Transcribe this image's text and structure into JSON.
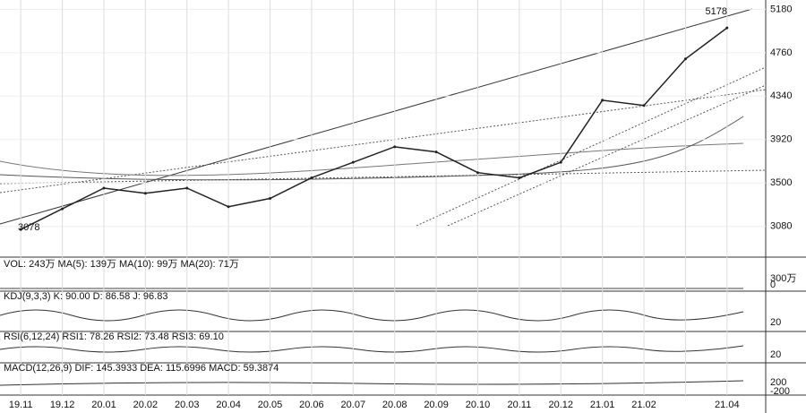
{
  "chart_data": {
    "type": "line",
    "categories": [
      "19.11",
      "19.12",
      "20.01",
      "20.02",
      "20.03",
      "20.04",
      "20.05",
      "20.06",
      "20.07",
      "20.08",
      "20.09",
      "20.10",
      "20.11",
      "20.12",
      "21.01",
      "21.02",
      null,
      "21.04"
    ],
    "values": [
      3050,
      3250,
      3450,
      3400,
      3450,
      3270,
      3350,
      3550,
      3700,
      3850,
      3800,
      3600,
      3550,
      3700,
      4300,
      4250,
      4700,
      5000
    ],
    "color": "#222222",
    "ylim": [
      2800,
      5270
    ],
    "yticks": [
      3080,
      3500,
      3920,
      4340,
      4760,
      5180
    ],
    "grid": true,
    "annotations": [
      "5178",
      "3078"
    ]
  },
  "panels": [
    {
      "title": "VOL: 243万 MA(5): 139万 MA(10): 99万 MA(20): 71万",
      "ticks": [
        "300万",
        "0"
      ]
    },
    {
      "title": "KDJ(9,3,3) K: 90.00 D: 86.58 J: 96.83",
      "ticks": [
        "20"
      ]
    },
    {
      "title": "RSI(6,12,24) RSI1: 78.26 RSI2: 73.48 RSI3: 69.10",
      "ticks": [
        "20"
      ]
    },
    {
      "title": "MACD(12,26,9) DIF: 145.3933 DEA: 115.6996 MACD: 59.3874",
      "ticks": [
        "200",
        "-200"
      ]
    }
  ]
}
